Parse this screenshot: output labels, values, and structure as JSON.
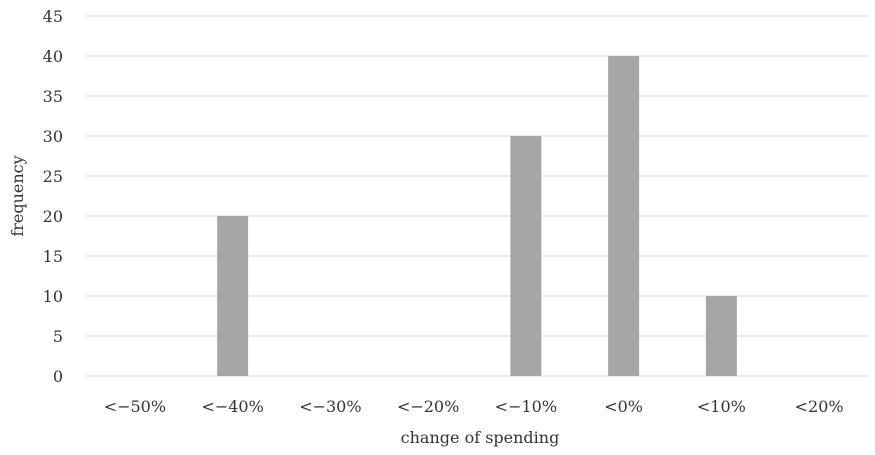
{
  "chart_data": {
    "type": "bar",
    "title": "",
    "xlabel": "change of spending",
    "ylabel": "frequency",
    "categories": [
      "<−50%",
      "<−40%",
      "<−30%",
      "<−20%",
      "<−10%",
      "<0%",
      "<10%",
      "<20%"
    ],
    "values": [
      0,
      20,
      0,
      0,
      30,
      40,
      10,
      0
    ],
    "ylim": [
      0,
      45
    ],
    "yticks": [
      0,
      5,
      10,
      15,
      20,
      25,
      30,
      35,
      40,
      45
    ],
    "grid": true,
    "legend": "none",
    "colors": {
      "bar": "#a5a7a7",
      "grid": "#d9d9d9",
      "text": "#333333"
    }
  }
}
